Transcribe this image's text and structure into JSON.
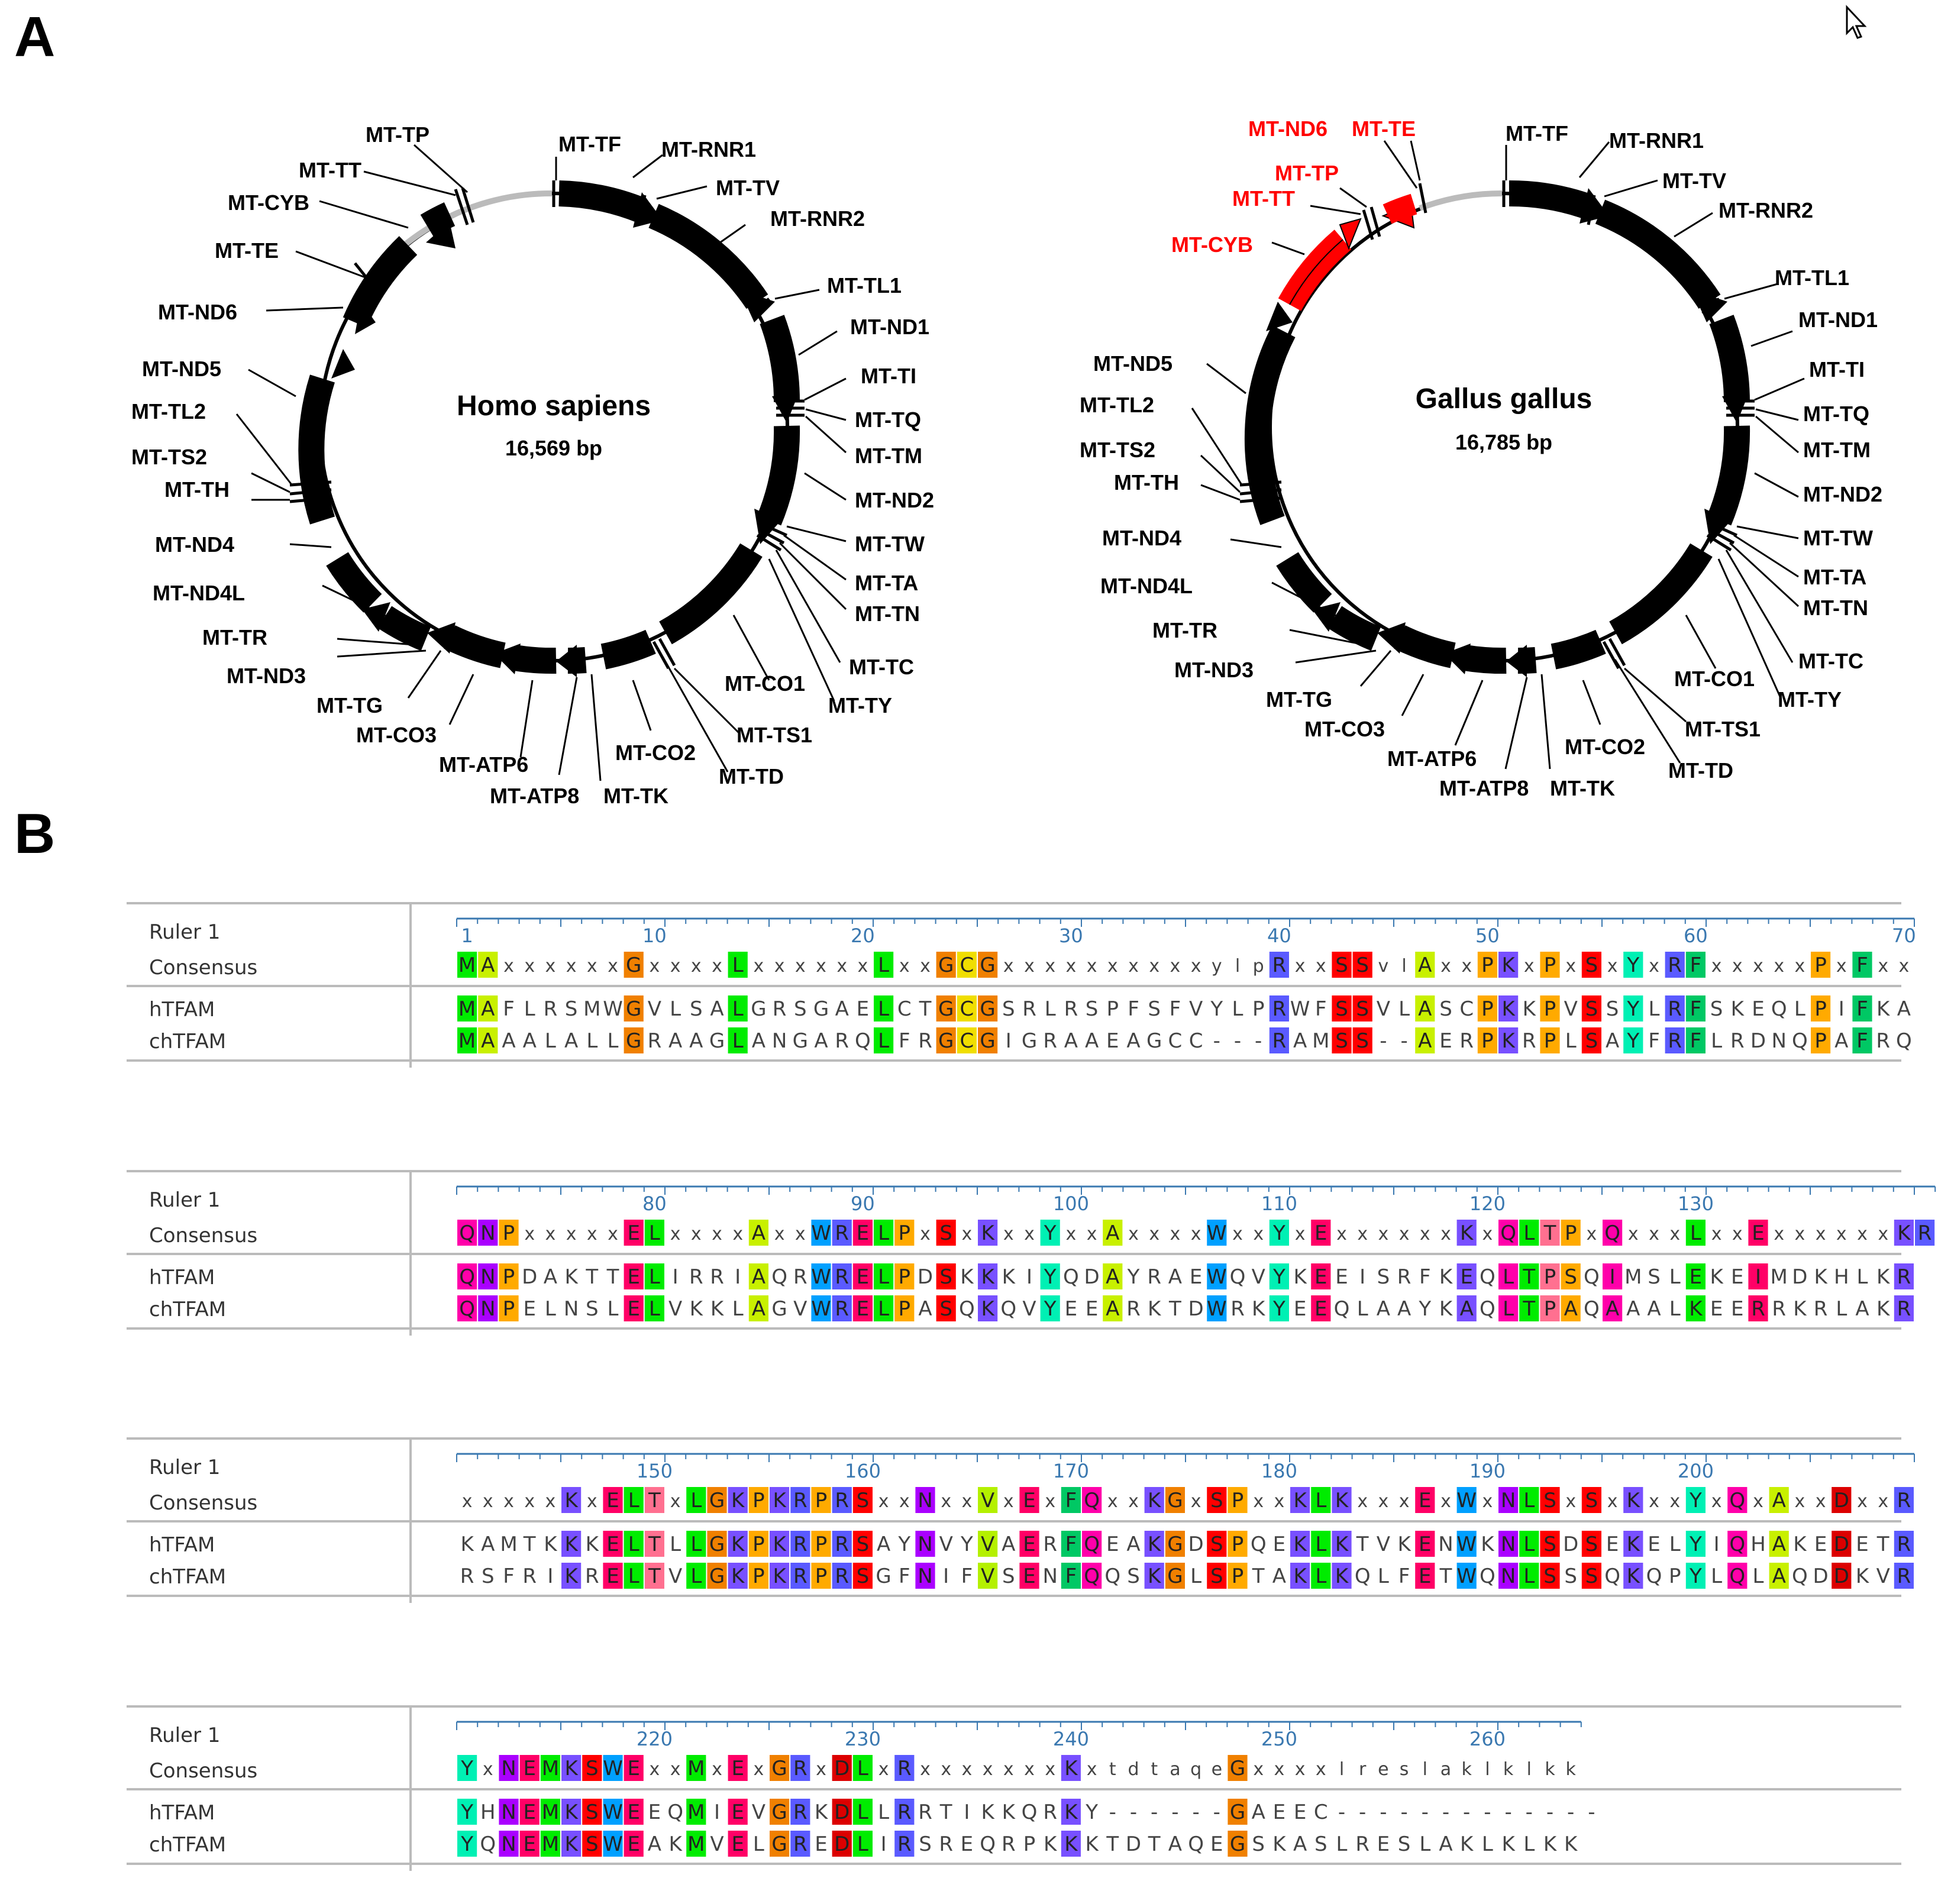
{
  "panel_labels": {
    "a": "A",
    "b": "B"
  },
  "maps": [
    {
      "organism": "Homo sapiens",
      "size": "16,569 bp",
      "highlight_color": "#ff0000",
      "genes": [
        {
          "name": "MT-TP",
          "color": "#000000"
        },
        {
          "name": "MT-TF",
          "color": "#000000"
        },
        {
          "name": "MT-RNR1",
          "color": "#000000"
        },
        {
          "name": "MT-TT",
          "color": "#000000"
        },
        {
          "name": "MT-TV",
          "color": "#000000"
        },
        {
          "name": "MT-CYB",
          "color": "#000000"
        },
        {
          "name": "MT-RNR2",
          "color": "#000000"
        },
        {
          "name": "MT-TE",
          "color": "#000000"
        },
        {
          "name": "MT-TL1",
          "color": "#000000"
        },
        {
          "name": "MT-ND6",
          "color": "#000000"
        },
        {
          "name": "MT-ND1",
          "color": "#000000"
        },
        {
          "name": "MT-ND5",
          "color": "#000000"
        },
        {
          "name": "MT-TI",
          "color": "#000000"
        },
        {
          "name": "MT-TL2",
          "color": "#000000"
        },
        {
          "name": "MT-TQ",
          "color": "#000000"
        },
        {
          "name": "MT-TS2",
          "color": "#000000"
        },
        {
          "name": "MT-TM",
          "color": "#000000"
        },
        {
          "name": "MT-TH",
          "color": "#000000"
        },
        {
          "name": "MT-ND2",
          "color": "#000000"
        },
        {
          "name": "MT-ND4",
          "color": "#000000"
        },
        {
          "name": "MT-TW",
          "color": "#000000"
        },
        {
          "name": "MT-TA",
          "color": "#000000"
        },
        {
          "name": "MT-ND4L",
          "color": "#000000"
        },
        {
          "name": "MT-TN",
          "color": "#000000"
        },
        {
          "name": "MT-TR",
          "color": "#000000"
        },
        {
          "name": "MT-TC",
          "color": "#000000"
        },
        {
          "name": "MT-ND3",
          "color": "#000000"
        },
        {
          "name": "MT-CO1",
          "color": "#000000"
        },
        {
          "name": "MT-TG",
          "color": "#000000"
        },
        {
          "name": "MT-TY",
          "color": "#000000"
        },
        {
          "name": "MT-CO3",
          "color": "#000000"
        },
        {
          "name": "MT-TS1",
          "color": "#000000"
        },
        {
          "name": "MT-CO2",
          "color": "#000000"
        },
        {
          "name": "MT-ATP6",
          "color": "#000000"
        },
        {
          "name": "MT-TD",
          "color": "#000000"
        },
        {
          "name": "MT-ATP8",
          "color": "#000000"
        },
        {
          "name": "MT-TK",
          "color": "#000000"
        }
      ]
    },
    {
      "organism": "Gallus gallus",
      "size": "16,785 bp",
      "highlight_color": "#ff0000",
      "genes": [
        {
          "name": "MT-ND6",
          "color": "#ff0000"
        },
        {
          "name": "MT-TE",
          "color": "#ff0000"
        },
        {
          "name": "MT-TF",
          "color": "#000000"
        },
        {
          "name": "MT-RNR1",
          "color": "#000000"
        },
        {
          "name": "MT-TP",
          "color": "#ff0000"
        },
        {
          "name": "MT-TV",
          "color": "#000000"
        },
        {
          "name": "MT-TT",
          "color": "#ff0000"
        },
        {
          "name": "MT-RNR2",
          "color": "#000000"
        },
        {
          "name": "MT-CYB",
          "color": "#ff0000"
        },
        {
          "name": "MT-TL1",
          "color": "#000000"
        },
        {
          "name": "MT-ND1",
          "color": "#000000"
        },
        {
          "name": "MT-ND5",
          "color": "#000000"
        },
        {
          "name": "MT-TI",
          "color": "#000000"
        },
        {
          "name": "MT-TL2",
          "color": "#000000"
        },
        {
          "name": "MT-TQ",
          "color": "#000000"
        },
        {
          "name": "MT-TS2",
          "color": "#000000"
        },
        {
          "name": "MT-TM",
          "color": "#000000"
        },
        {
          "name": "MT-TH",
          "color": "#000000"
        },
        {
          "name": "MT-ND2",
          "color": "#000000"
        },
        {
          "name": "MT-ND4",
          "color": "#000000"
        },
        {
          "name": "MT-TW",
          "color": "#000000"
        },
        {
          "name": "MT-TA",
          "color": "#000000"
        },
        {
          "name": "MT-ND4L",
          "color": "#000000"
        },
        {
          "name": "MT-TN",
          "color": "#000000"
        },
        {
          "name": "MT-TR",
          "color": "#000000"
        },
        {
          "name": "MT-TC",
          "color": "#000000"
        },
        {
          "name": "MT-ND3",
          "color": "#000000"
        },
        {
          "name": "MT-CO1",
          "color": "#000000"
        },
        {
          "name": "MT-TY",
          "color": "#000000"
        },
        {
          "name": "MT-TG",
          "color": "#000000"
        },
        {
          "name": "MT-TS1",
          "color": "#000000"
        },
        {
          "name": "MT-CO3",
          "color": "#000000"
        },
        {
          "name": "MT-CO2",
          "color": "#000000"
        },
        {
          "name": "MT-ATP6",
          "color": "#000000"
        },
        {
          "name": "MT-TD",
          "color": "#000000"
        },
        {
          "name": "MT-ATP8",
          "color": "#000000"
        },
        {
          "name": "MT-TK",
          "color": "#000000"
        }
      ]
    }
  ],
  "alignment": {
    "labels": {
      "ruler": "Ruler 1",
      "consensus": "Consensus",
      "seq1": "hTFAM",
      "seq2": "chTFAM"
    },
    "gap_symbol": "-",
    "residue_colors": {
      "A": "#c8f000",
      "C": "#f0de00",
      "D": "#dc0000",
      "E": "#ff0066",
      "F": "#00c864",
      "G": "#f08000",
      "H": "#6464ff",
      "I": "#00ffff",
      "K": "#7850ff",
      "L": "#00ec00",
      "M": "#00ec00",
      "N": "#aa00ff",
      "P": "#ffaa00",
      "Q": "#ff00aa",
      "R": "#5a5aff",
      "S": "#ff0000",
      "T": "#ff7090",
      "V": "#b4f000",
      "W": "#00a0ff",
      "Y": "#00f0b4"
    },
    "blocks": [
      {
        "start": 1,
        "ticks": [
          1,
          10,
          20,
          30,
          40,
          50,
          60,
          70
        ],
        "consensus": "MAxxxxxxGxxxxLxxxxxxLxxGCGxxxxxxxxxxylpRxxSSvlAxxPKxPxSxYxRFxxxxxPxFxx",
        "seq1": "MAFLRSMWGVLSALGRSGAELCTGCGSRLRSPFSFVYLPRWFSSVLASCPKKPVSSYLRFSKEQLPIFKA",
        "seq2": "MAAALALLGRAAGLANGARQLFRGCGIGRAAEAGCC---RAMSS--AERPKRPLSAYFRFLRDNQPAFRQ"
      },
      {
        "start": 71,
        "ticks": [
          80,
          90,
          100,
          110,
          120,
          130
        ],
        "consensus": "QNPxxxxxELxxxxAxxWRELPxSxKxxYxxAxxxxWxxYxExxxxxxKxQLTPxQxxxLxxExxxxxxKR",
        "seq1": "QNPDAKTTELIRRIAQRWRELPDSKKKIYQDAYRAEWQVYKEEISRFKEQLTPSQIMSLEKEIMDKHLKR",
        "seq2": "QNPELNSLELVKKLAGVWRELPASQKQVYEEARKTDWRKYEEQLAAYKAQLTPAQAAALKEERRKRLAKR"
      },
      {
        "start": 141,
        "ticks": [
          150,
          160,
          170,
          180,
          190,
          200
        ],
        "consensus": "xxxxxKxELTxLGKPKRPRSxxNxxVxExFQxxKGxSPxxKLKxxxExWxNLSxSxKxxYxQxAxxDxxR",
        "seq1": "KAMTKKKELTLLGKPKRPRSAYNVYVAERFQEAKGDSPQEKLKTVKENWKNLSDSEKELYIQHAKEDETR",
        "seq2": "RSFRIKRELTVLGKPKRPRSGFNIFVSENFQQSKGLSPTAKLKQLFETWQNLSSSQKQPYLQLAQDDKVR"
      },
      {
        "start": 211,
        "ticks": [
          220,
          230,
          240,
          250,
          260
        ],
        "consensus": "YxNEMKSWExxMxExGRxDLxRxxxxxxxKxtdtaqeGxxxxlreslaklklkk",
        "seq1": "YHNEMKSWEEQMIEVGRKDLLRRTIKKQRKY------GAEEC-------------",
        "seq2": "YQNEMKSWEAKMVELGREDLIRSREQRPKKKTDTAQEGSKASLRESLAKLKLKK"
      }
    ]
  }
}
